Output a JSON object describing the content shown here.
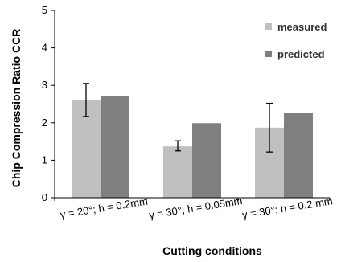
{
  "chart_data": {
    "type": "bar",
    "xlabel": "Cutting conditions",
    "ylabel": "Chip Compression Ratio CCR",
    "ylim": [
      0,
      5
    ],
    "yticks": [
      0,
      1,
      2,
      3,
      4,
      5
    ],
    "grid": false,
    "legend_position": "top-right",
    "categories": [
      "γ = 20°; h = 0.2mm",
      "γ = 30°; h = 0.05mm",
      "γ = 30°; h = 0.2 mm"
    ],
    "series": [
      {
        "name": "measured",
        "color": "#c0c0c0",
        "values": [
          2.6,
          1.37,
          1.87
        ],
        "error_low": [
          2.17,
          1.25,
          1.22
        ],
        "error_high": [
          3.05,
          1.52,
          2.52
        ]
      },
      {
        "name": "predicted",
        "color": "#7f7f7f",
        "values": [
          2.72,
          1.99,
          2.26
        ]
      }
    ]
  }
}
